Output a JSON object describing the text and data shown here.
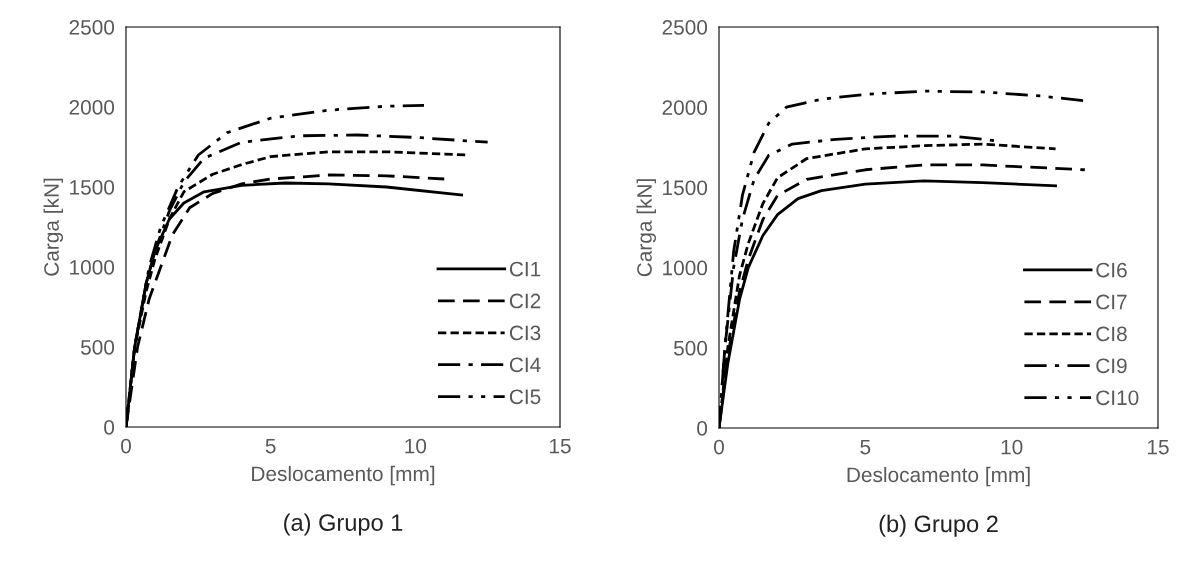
{
  "chart_data": [
    {
      "type": "line",
      "title": "(a) Grupo 1",
      "xlabel": "Deslocamento [mm]",
      "ylabel": "Carga [kN]",
      "xlim": [
        0,
        15
      ],
      "ylim": [
        0,
        2500
      ],
      "xticks": [
        0,
        5,
        10,
        15
      ],
      "yticks": [
        0,
        500,
        1000,
        1500,
        2000,
        2500
      ],
      "grid": false,
      "legend": "bottom right",
      "marker": "none",
      "series": [
        {
          "name": "CI1",
          "color": "#000000",
          "line_style": "solid",
          "x": [
            0,
            0.3,
            0.7,
            1,
            1.5,
            2,
            2.7,
            4,
            5.5,
            7,
            9,
            11.6
          ],
          "values": [
            0,
            500,
            900,
            1100,
            1300,
            1400,
            1470,
            1510,
            1525,
            1520,
            1500,
            1450
          ]
        },
        {
          "name": "CI2",
          "color": "#000000",
          "line_style": "dashed",
          "x": [
            0,
            0.4,
            0.8,
            1.2,
            1.6,
            2.2,
            3,
            4,
            5,
            7,
            9,
            11
          ],
          "values": [
            0,
            500,
            800,
            1000,
            1200,
            1370,
            1460,
            1520,
            1550,
            1575,
            1570,
            1550
          ]
        },
        {
          "name": "CI3",
          "color": "#000000",
          "line_style": "dotted",
          "x": [
            0,
            0.3,
            0.7,
            1,
            1.5,
            2,
            3,
            4,
            5,
            7,
            9,
            11.8
          ],
          "values": [
            0,
            500,
            850,
            1050,
            1300,
            1470,
            1580,
            1640,
            1690,
            1720,
            1720,
            1700
          ]
        },
        {
          "name": "CI4",
          "color": "#000000",
          "line_style": "dashdot",
          "x": [
            0,
            0.3,
            0.7,
            1,
            1.5,
            2,
            2.7,
            4,
            6,
            8,
            10,
            12.5
          ],
          "values": [
            0,
            500,
            900,
            1100,
            1350,
            1530,
            1680,
            1780,
            1820,
            1825,
            1810,
            1780
          ]
        },
        {
          "name": "CI5",
          "color": "#000000",
          "line_style": "dashdotdot",
          "x": [
            0,
            0.3,
            0.8,
            1.2,
            1.8,
            2.5,
            3.5,
            5,
            7,
            9,
            10.3
          ],
          "values": [
            0,
            500,
            1000,
            1250,
            1500,
            1700,
            1840,
            1930,
            1980,
            2005,
            2010
          ]
        }
      ]
    },
    {
      "type": "line",
      "title": "(b) Grupo 2",
      "xlabel": "Deslocamento [mm]",
      "ylabel": "Carga [kN]",
      "xlim": [
        0,
        15
      ],
      "ylim": [
        0,
        2500
      ],
      "xticks": [
        0,
        5,
        10,
        15
      ],
      "yticks": [
        0,
        500,
        1000,
        1500,
        2000,
        2500
      ],
      "grid": false,
      "legend": "bottom right",
      "marker": "none",
      "series": [
        {
          "name": "CI6",
          "color": "#000000",
          "line_style": "solid",
          "x": [
            0,
            0.3,
            0.7,
            1,
            1.5,
            2,
            2.7,
            3.5,
            5,
            7,
            9,
            11.5
          ],
          "values": [
            0,
            400,
            800,
            1000,
            1200,
            1330,
            1430,
            1480,
            1520,
            1540,
            1530,
            1510
          ]
        },
        {
          "name": "CI7",
          "color": "#000000",
          "line_style": "dashed",
          "x": [
            0,
            0.3,
            0.7,
            1,
            1.5,
            2,
            3,
            5,
            7,
            9,
            12.5
          ],
          "values": [
            0,
            450,
            850,
            1050,
            1300,
            1450,
            1550,
            1610,
            1640,
            1640,
            1610
          ]
        },
        {
          "name": "CI8",
          "color": "#000000",
          "line_style": "dotted",
          "x": [
            0,
            0.3,
            0.7,
            1,
            1.5,
            2,
            3,
            5,
            7,
            9,
            11.5
          ],
          "values": [
            0,
            500,
            950,
            1150,
            1400,
            1560,
            1680,
            1740,
            1760,
            1770,
            1740
          ]
        },
        {
          "name": "CI9",
          "color": "#000000",
          "line_style": "dashdot",
          "x": [
            0,
            0.2,
            0.5,
            0.8,
            1.2,
            1.7,
            2.5,
            4,
            6,
            8,
            9.5
          ],
          "values": [
            0,
            500,
            1000,
            1300,
            1550,
            1700,
            1770,
            1800,
            1820,
            1820,
            1790
          ]
        },
        {
          "name": "CI10",
          "color": "#000000",
          "line_style": "dashdotdot",
          "x": [
            0,
            0.2,
            0.5,
            0.8,
            1.2,
            1.7,
            2.3,
            3.5,
            5,
            7,
            9,
            11,
            12.5
          ],
          "values": [
            0,
            500,
            1100,
            1450,
            1720,
            1900,
            2000,
            2050,
            2080,
            2100,
            2095,
            2070,
            2040
          ]
        }
      ]
    }
  ]
}
